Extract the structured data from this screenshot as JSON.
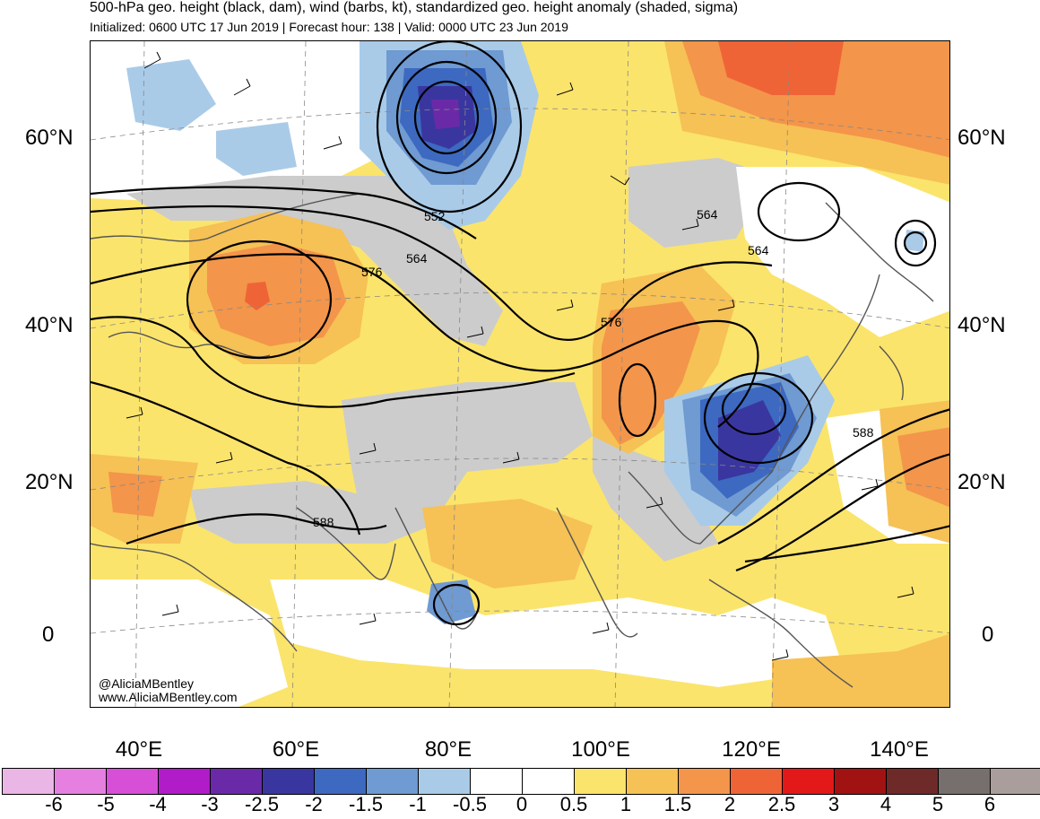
{
  "header": {
    "title": "500-hPa geo. height (black, dam), wind (barbs, kt), standardized geo. height anomaly (shaded, sigma)",
    "subtitle": "Initialized: 0600 UTC 17 Jun 2019 | Forecast hour: 138 | Valid: 0000 UTC 23 Jun 2019"
  },
  "axes": {
    "lat_labels": [
      "60°N",
      "40°N",
      "20°N",
      "0"
    ],
    "lon_labels": [
      "40°E",
      "60°E",
      "80°E",
      "100°E",
      "120°E",
      "140°E"
    ]
  },
  "contours": {
    "labels": [
      "552",
      "564",
      "576",
      "564",
      "564",
      "576",
      "588",
      "588"
    ]
  },
  "credit": {
    "handle": "@AliciaMBentley",
    "url": "www.AliciaMBentley.com"
  },
  "colorbar": {
    "labels": [
      "-6",
      "-5",
      "-4",
      "-3",
      "-2.5",
      "-2",
      "-1.5",
      "-1",
      "-0.5",
      "0",
      "0.5",
      "1",
      "1.5",
      "2",
      "2.5",
      "3",
      "4",
      "5",
      "6"
    ],
    "colors": [
      "#e9b6e6",
      "#e680e0",
      "#d64fd6",
      "#b01cc8",
      "#6a2aa8",
      "#3a36a0",
      "#3d69c0",
      "#6f9ad2",
      "#a9cbe8",
      "#ffffff",
      "#ffffff",
      "#fbe46b",
      "#f6c155",
      "#f3954a",
      "#ef6436",
      "#e31919",
      "#a11313",
      "#6e2a29",
      "#776f6d",
      "#a99e9c"
    ]
  }
}
